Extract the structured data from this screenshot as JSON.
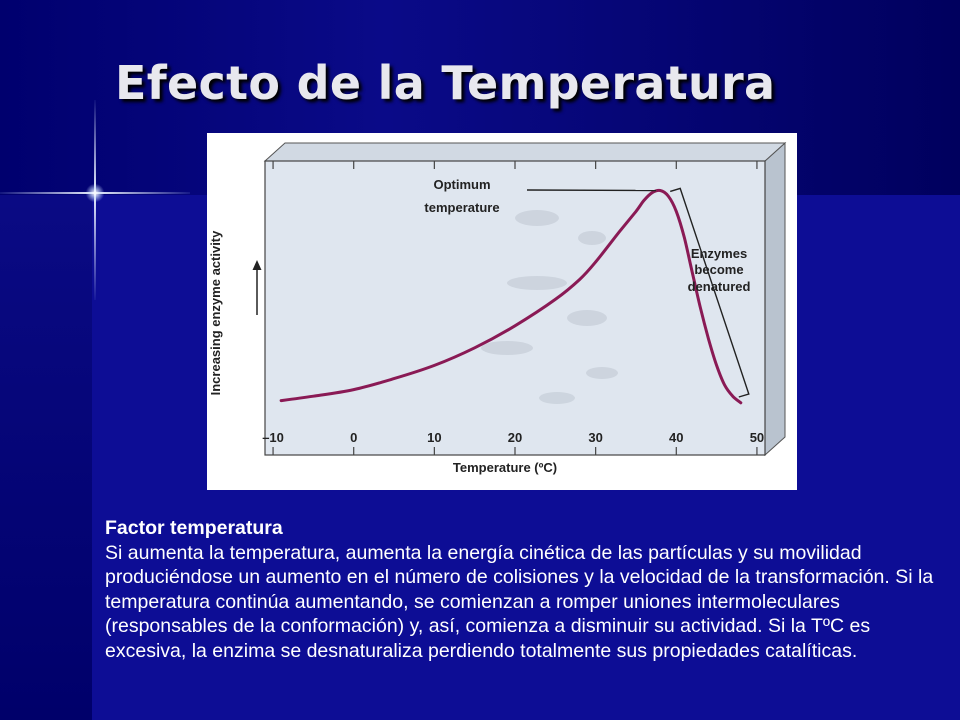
{
  "slide": {
    "title": "Efecto de la Temperatura"
  },
  "colors": {
    "background": "#0b0b8c",
    "title": "#e8e8ee",
    "text": "#ffffff",
    "plot_area": "#dfe6ef",
    "curve": "#8a1a55"
  },
  "chart_data": {
    "type": "line",
    "xlabel": "Temperature (ºC)",
    "ylabel": "Increasing enzyme activity",
    "x_ticks": [
      -10,
      0,
      10,
      20,
      30,
      40,
      50
    ],
    "x_tick_labels": [
      "–10",
      "0",
      "10",
      "20",
      "30",
      "40",
      "50"
    ],
    "xlim": [
      -11,
      51
    ],
    "ylim": [
      0,
      1
    ],
    "grid": false,
    "series": [
      {
        "x": [
          -9,
          -5,
          0,
          5,
          10,
          15,
          20,
          25,
          28,
          30,
          33,
          35,
          36,
          37,
          38,
          39,
          40,
          41,
          42,
          43,
          44,
          45,
          46,
          47,
          48
        ],
        "y": [
          0.02,
          0.04,
          0.07,
          0.12,
          0.18,
          0.26,
          0.36,
          0.48,
          0.57,
          0.65,
          0.79,
          0.88,
          0.93,
          0.965,
          0.975,
          0.95,
          0.88,
          0.76,
          0.6,
          0.44,
          0.3,
          0.18,
          0.09,
          0.04,
          0.01
        ]
      }
    ],
    "annotations": [
      {
        "lines": [
          "Optimum",
          "temperature"
        ],
        "x": 37.5,
        "y": 0.975
      },
      {
        "lines": [
          "Enzymes",
          "become",
          "denatured"
        ],
        "x_range": [
          38,
          48
        ]
      }
    ]
  },
  "text_block": {
    "heading": "Factor temperatura",
    "body": "Si aumenta la temperatura, aumenta la energía cinética de las partículas y su movilidad produciéndose un aumento en el número de colisiones y la velocidad de la transformación. Si la temperatura continúa aumentando, se comienzan a romper uniones intermoleculares (responsables de la conformación) y, así, comienza a disminuir su actividad. Si la TºC es excesiva, la enzima se desnaturaliza perdiendo totalmente sus propiedades catalíticas."
  }
}
